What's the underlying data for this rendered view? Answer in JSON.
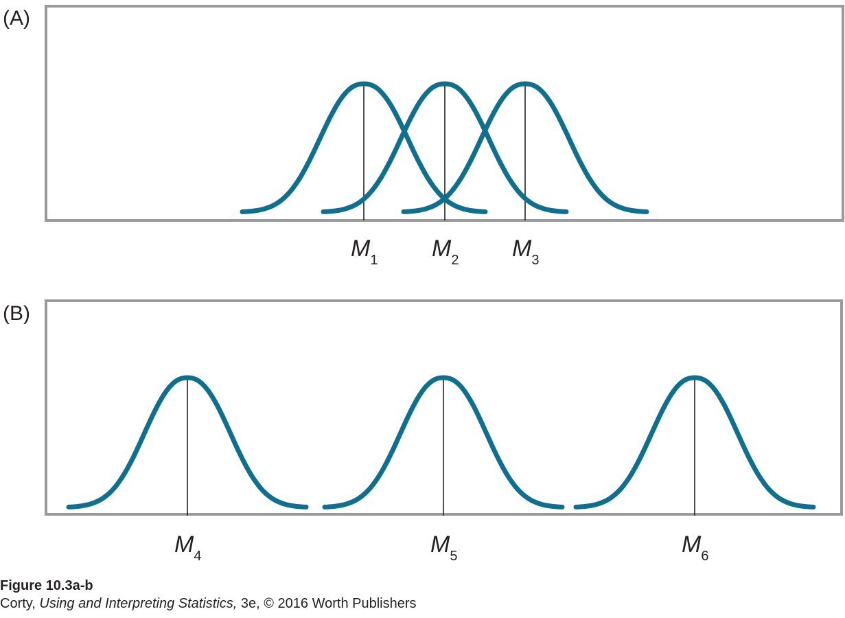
{
  "panels": [
    {
      "label": "(A)",
      "curves": [
        {
          "mean_label": "M",
          "subscript": "1"
        },
        {
          "mean_label": "M",
          "subscript": "2"
        },
        {
          "mean_label": "M",
          "subscript": "3"
        }
      ]
    },
    {
      "label": "(B)",
      "curves": [
        {
          "mean_label": "M",
          "subscript": "4"
        },
        {
          "mean_label": "M",
          "subscript": "5"
        },
        {
          "mean_label": "M",
          "subscript": "6"
        }
      ]
    }
  ],
  "caption": {
    "title": "Figure 10.3a-b",
    "credit_author": "Corty, ",
    "credit_book": "Using and Interpreting Statistics,",
    "credit_rest": " 3e, © 2016 Worth Publishers"
  },
  "colors": {
    "curve": "#0f6f8f",
    "frame": "#9a9a9a",
    "mean_line": "#231f20"
  }
}
